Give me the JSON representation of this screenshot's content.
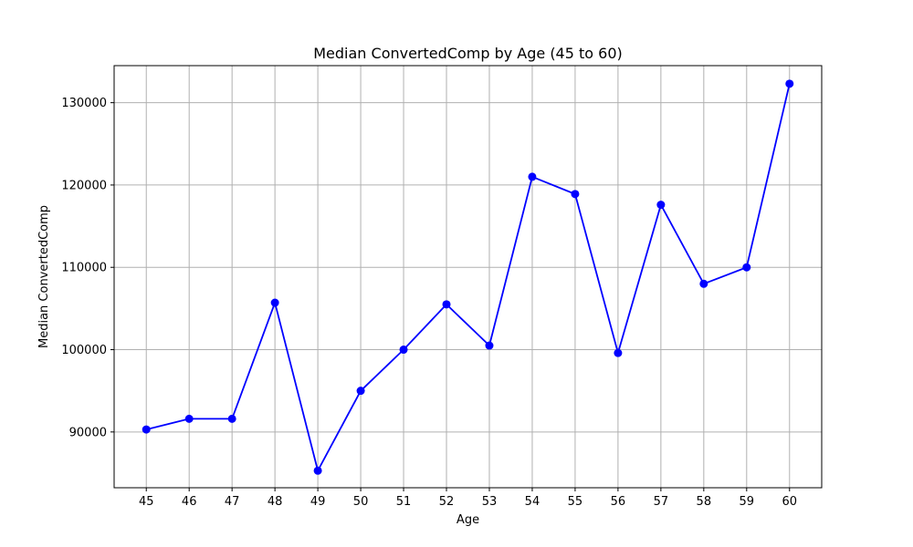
{
  "chart_data": {
    "type": "line",
    "title": "Median ConvertedComp by Age (45 to 60)",
    "xlabel": "Age",
    "ylabel": "Median ConvertedComp",
    "x": [
      45,
      46,
      47,
      48,
      49,
      50,
      51,
      52,
      53,
      54,
      55,
      56,
      57,
      58,
      59,
      60
    ],
    "x_tick_labels": [
      "45",
      "46",
      "47",
      "48",
      "49",
      "50",
      "51",
      "52",
      "53",
      "54",
      "55",
      "56",
      "57",
      "58",
      "59",
      "60"
    ],
    "y_ticks": [
      90000,
      100000,
      110000,
      120000,
      130000
    ],
    "y_tick_labels": [
      "90000",
      "100000",
      "110000",
      "120000",
      "130000"
    ],
    "xlim": [
      44.25,
      60.75
    ],
    "ylim": [
      83225,
      134500
    ],
    "grid": true,
    "legend": "none",
    "series": [
      {
        "values": [
          90300,
          91600,
          91600,
          105700,
          85300,
          95000,
          100000,
          105500,
          100500,
          121000,
          118900,
          99600,
          117600,
          108000,
          110000,
          132300
        ],
        "color": "#0000ff",
        "marker": "circle"
      }
    ],
    "colors": {
      "grid": "#b0b0b0",
      "axes": "#000000",
      "background": "#ffffff"
    }
  }
}
